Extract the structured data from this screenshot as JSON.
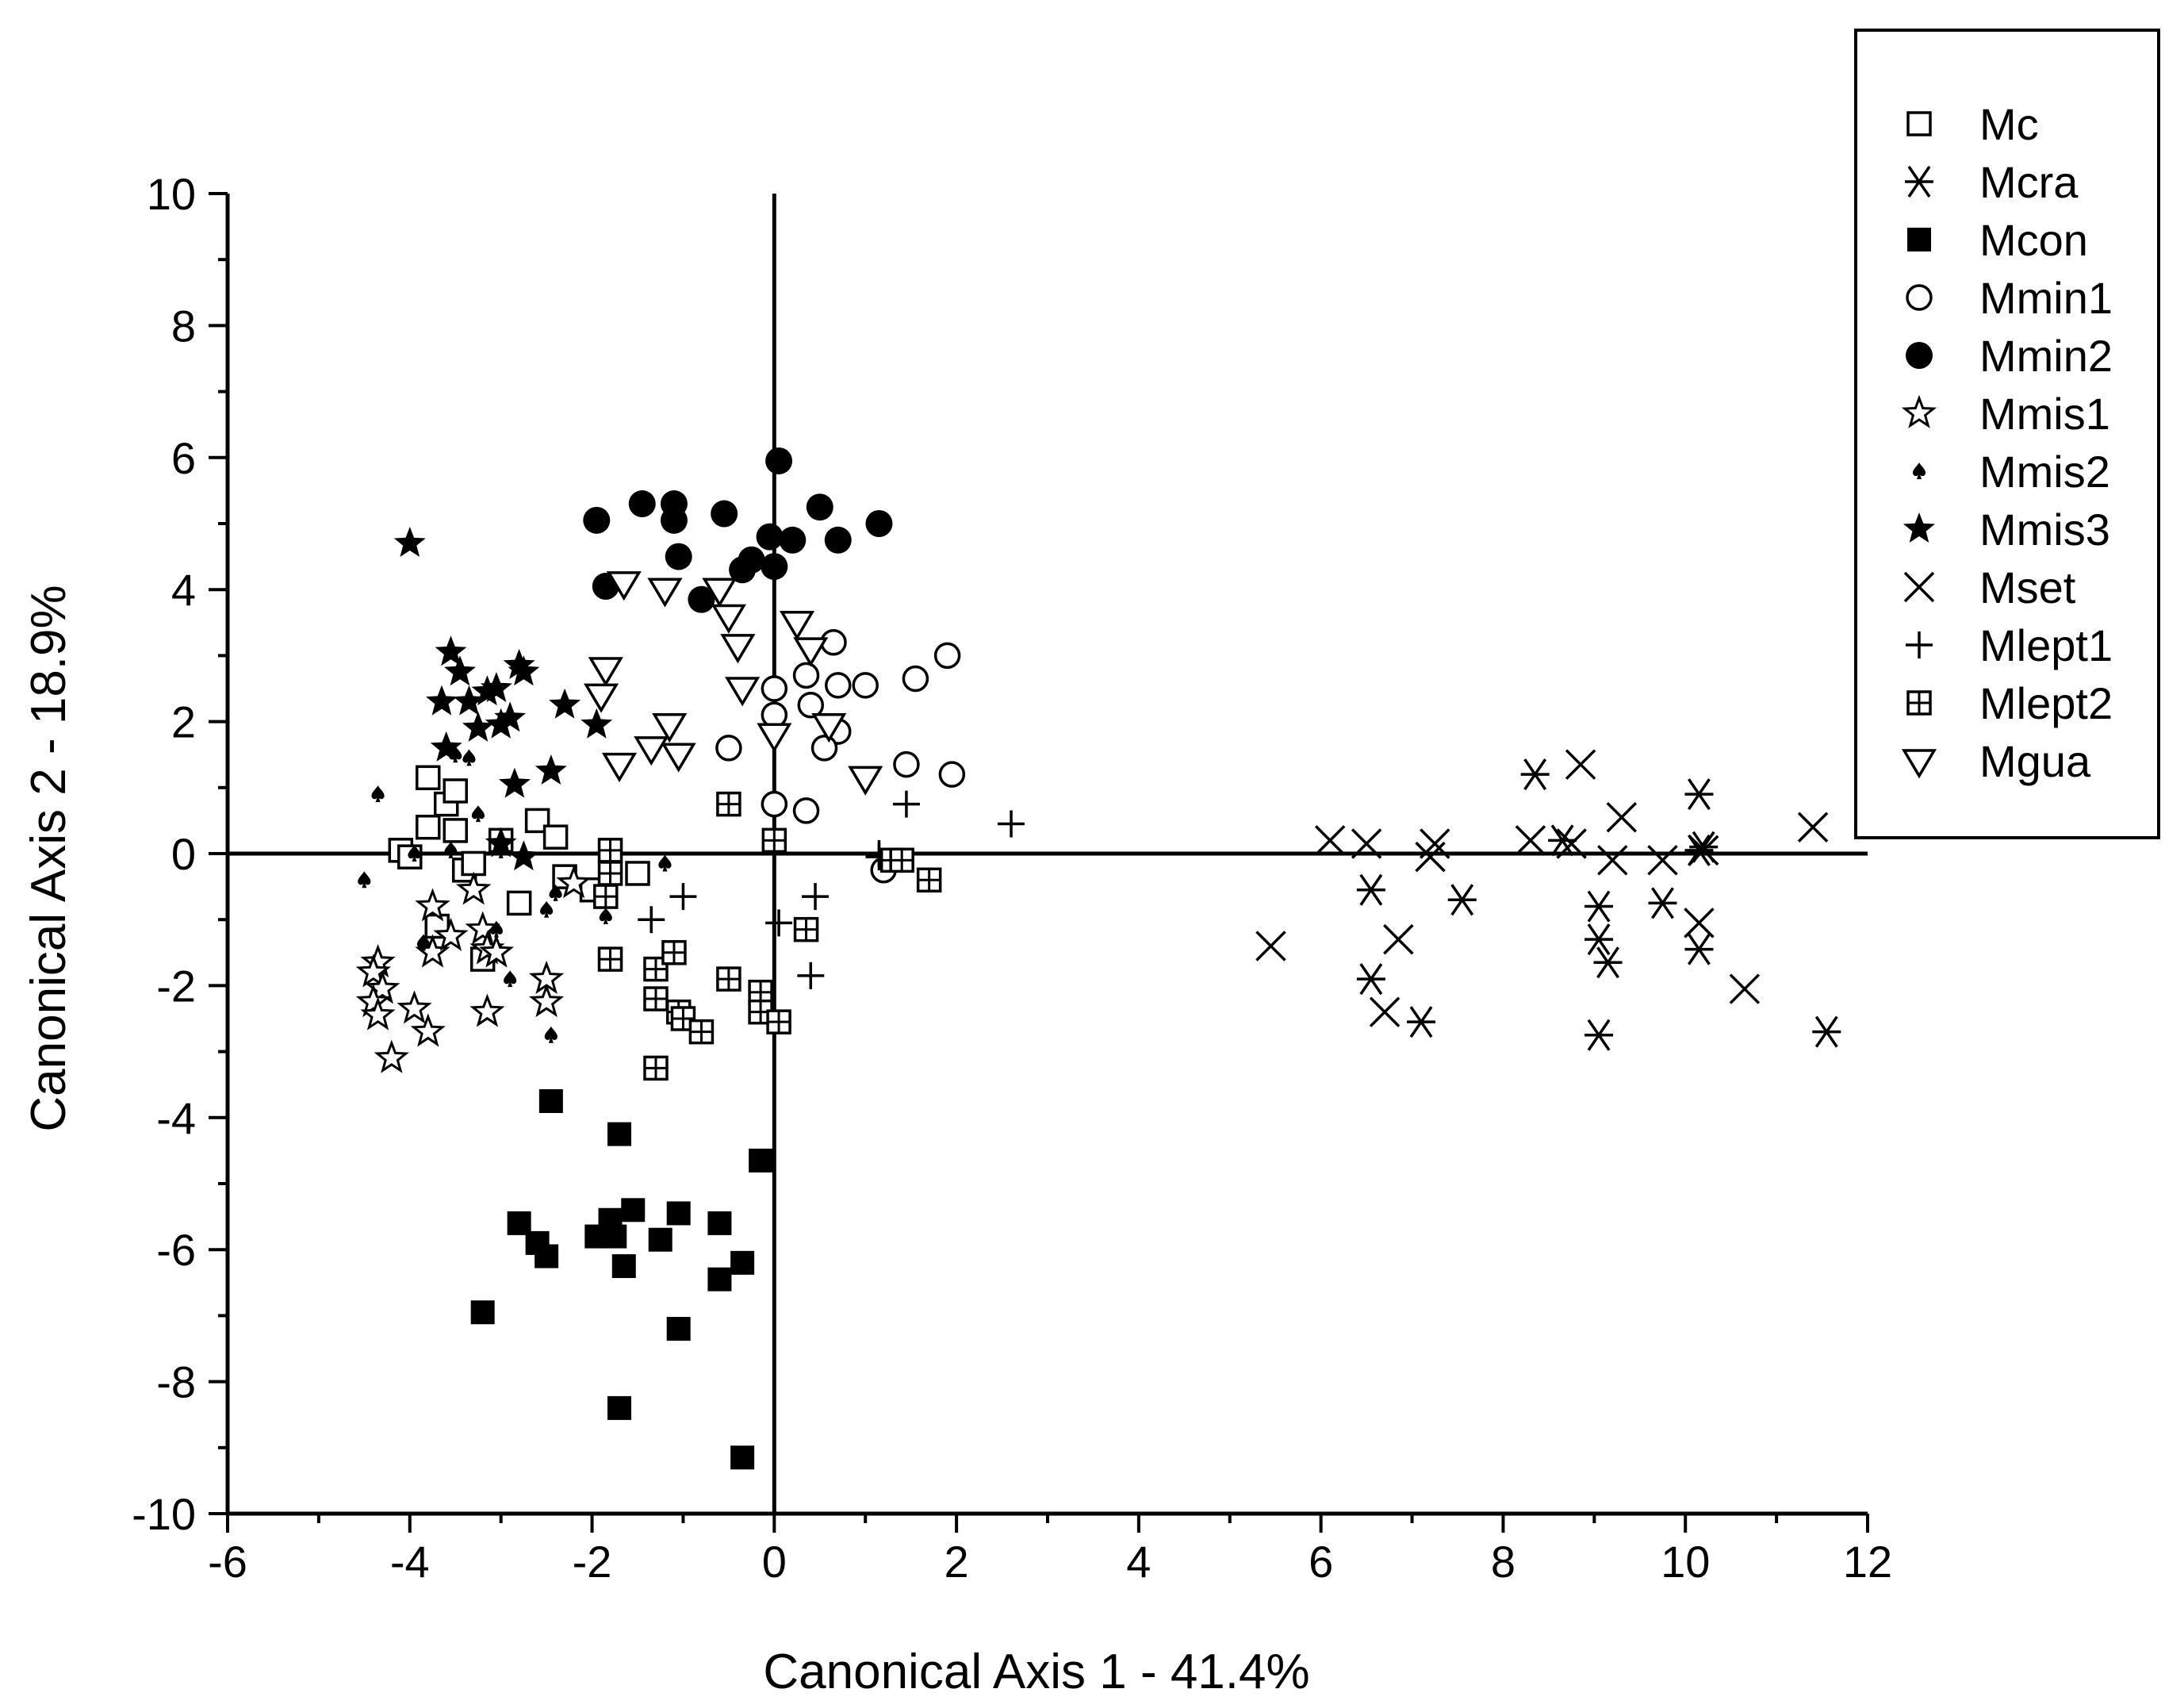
{
  "chart_data": {
    "type": "scatter",
    "title": "",
    "xlabel": "Canonical Axis 1 - 41.4%",
    "ylabel": "Canonical Axis 2 - 18.9%",
    "xlim": [
      -6,
      12
    ],
    "ylim": [
      -10,
      10
    ],
    "x_ticks": [
      -6,
      -4,
      -2,
      0,
      2,
      4,
      6,
      8,
      10,
      12
    ],
    "y_ticks": [
      -10,
      -8,
      -6,
      -4,
      -2,
      0,
      2,
      4,
      6,
      8,
      10
    ],
    "x_tick_labels": [
      "-6",
      "-4",
      "-2",
      "0",
      "2",
      "4",
      "6",
      "8",
      "10",
      "12"
    ],
    "y_tick_labels": [
      "-10",
      "-8",
      "-6",
      "-4",
      "-2",
      "0",
      "2",
      "4",
      "6",
      "8",
      "10"
    ],
    "zero_lines": true,
    "grid": false,
    "legend_position": "top-right, outside plot",
    "series": [
      {
        "name": "Mc",
        "marker": "open-square",
        "points": [
          [
            -4.1,
            0.05
          ],
          [
            -4.0,
            -0.05
          ],
          [
            -3.8,
            0.4
          ],
          [
            -3.8,
            1.15
          ],
          [
            -3.7,
            -1.1
          ],
          [
            -3.6,
            0.75
          ],
          [
            -3.5,
            0.95
          ],
          [
            -3.5,
            0.35
          ],
          [
            -3.4,
            -0.25
          ],
          [
            -3.3,
            -0.15
          ],
          [
            -3.2,
            -1.6
          ],
          [
            -3.0,
            0.2
          ],
          [
            -2.8,
            -0.75
          ],
          [
            -2.6,
            0.5
          ],
          [
            -2.4,
            0.25
          ],
          [
            -2.3,
            -0.35
          ],
          [
            -2.0,
            -0.55
          ],
          [
            -1.5,
            -0.3
          ]
        ]
      },
      {
        "name": "Mcra",
        "marker": "asterisk",
        "points": [
          [
            6.55,
            -0.55
          ],
          [
            6.55,
            -1.9
          ],
          [
            7.1,
            -2.55
          ],
          [
            7.55,
            -0.7
          ],
          [
            8.35,
            1.2
          ],
          [
            8.65,
            0.2
          ],
          [
            9.05,
            -0.8
          ],
          [
            9.05,
            -1.3
          ],
          [
            9.05,
            -2.75
          ],
          [
            9.15,
            -1.65
          ],
          [
            9.75,
            -0.75
          ],
          [
            10.15,
            0.9
          ],
          [
            10.15,
            -1.45
          ],
          [
            10.15,
            0.05
          ],
          [
            10.2,
            0.1
          ],
          [
            11.55,
            -2.7
          ]
        ]
      },
      {
        "name": "Mcon",
        "marker": "filled-square",
        "points": [
          [
            -2.45,
            -3.75
          ],
          [
            -3.2,
            -6.95
          ],
          [
            -2.8,
            -5.6
          ],
          [
            -2.6,
            -5.9
          ],
          [
            -2.5,
            -6.1
          ],
          [
            -1.95,
            -5.8
          ],
          [
            -1.8,
            -5.55
          ],
          [
            -1.75,
            -5.8
          ],
          [
            -1.65,
            -6.25
          ],
          [
            -1.55,
            -5.4
          ],
          [
            -1.7,
            -4.25
          ],
          [
            -1.25,
            -5.85
          ],
          [
            -1.05,
            -5.45
          ],
          [
            -1.05,
            -7.2
          ],
          [
            -1.7,
            -8.4
          ],
          [
            -0.6,
            -5.6
          ],
          [
            -0.6,
            -6.45
          ],
          [
            -0.35,
            -6.2
          ],
          [
            -0.15,
            -4.65
          ],
          [
            -0.35,
            -9.15
          ]
        ]
      },
      {
        "name": "Mmin1",
        "marker": "open-circle",
        "points": [
          [
            0.65,
            3.2
          ],
          [
            1.9,
            3.0
          ],
          [
            1.55,
            2.65
          ],
          [
            0.35,
            2.7
          ],
          [
            0.7,
            2.55
          ],
          [
            1.0,
            2.55
          ],
          [
            0.0,
            2.5
          ],
          [
            0.0,
            2.1
          ],
          [
            0.4,
            2.25
          ],
          [
            0.7,
            1.85
          ],
          [
            -0.5,
            1.6
          ],
          [
            0.55,
            1.6
          ],
          [
            1.45,
            1.35
          ],
          [
            1.95,
            1.2
          ],
          [
            0.0,
            0.75
          ],
          [
            0.35,
            0.65
          ],
          [
            1.2,
            -0.25
          ]
        ]
      },
      {
        "name": "Mmin2",
        "marker": "filled-circle",
        "points": [
          [
            0.05,
            5.95
          ],
          [
            -1.45,
            5.3
          ],
          [
            -1.1,
            5.3
          ],
          [
            -1.1,
            5.05
          ],
          [
            -0.55,
            5.15
          ],
          [
            0.5,
            5.25
          ],
          [
            -1.95,
            5.05
          ],
          [
            1.15,
            5.0
          ],
          [
            0.2,
            4.75
          ],
          [
            0.7,
            4.75
          ],
          [
            -0.05,
            4.8
          ],
          [
            -1.05,
            4.5
          ],
          [
            -0.25,
            4.45
          ],
          [
            -0.35,
            4.3
          ],
          [
            0.0,
            4.35
          ],
          [
            -1.85,
            4.05
          ],
          [
            -0.8,
            3.85
          ]
        ]
      },
      {
        "name": "Mmis1",
        "marker": "open-star",
        "points": [
          [
            -4.35,
            -1.65
          ],
          [
            -4.4,
            -1.8
          ],
          [
            -4.3,
            -2.05
          ],
          [
            -4.4,
            -2.25
          ],
          [
            -4.35,
            -2.45
          ],
          [
            -4.2,
            -3.1
          ],
          [
            -3.95,
            -2.35
          ],
          [
            -3.8,
            -2.7
          ],
          [
            -3.75,
            -1.5
          ],
          [
            -3.75,
            -0.8
          ],
          [
            -3.55,
            -1.25
          ],
          [
            -3.3,
            -0.55
          ],
          [
            -3.2,
            -1.15
          ],
          [
            -3.15,
            -1.45
          ],
          [
            -3.05,
            -1.5
          ],
          [
            -3.15,
            -2.4
          ],
          [
            -2.5,
            -1.9
          ],
          [
            -2.5,
            -2.25
          ],
          [
            -2.2,
            -0.45
          ]
        ]
      },
      {
        "name": "Mmis2",
        "marker": "spade",
        "points": [
          [
            -4.35,
            0.9
          ],
          [
            -4.5,
            -0.4
          ],
          [
            -3.95,
            0.0
          ],
          [
            -3.85,
            -1.35
          ],
          [
            -3.55,
            0.05
          ],
          [
            -3.5,
            1.5
          ],
          [
            -3.35,
            1.45
          ],
          [
            -3.25,
            0.6
          ],
          [
            -3.05,
            -1.15
          ],
          [
            -3.0,
            0.05
          ],
          [
            -2.9,
            -1.9
          ],
          [
            -2.5,
            -0.85
          ],
          [
            -2.45,
            -2.75
          ],
          [
            -2.4,
            -0.6
          ],
          [
            -1.85,
            -0.95
          ],
          [
            -1.2,
            -0.15
          ]
        ]
      },
      {
        "name": "Mmis3",
        "marker": "filled-star",
        "points": [
          [
            -4.0,
            4.7
          ],
          [
            -3.55,
            3.05
          ],
          [
            -3.45,
            2.75
          ],
          [
            -3.65,
            2.3
          ],
          [
            -3.35,
            2.3
          ],
          [
            -3.15,
            2.45
          ],
          [
            -3.05,
            2.5
          ],
          [
            -2.8,
            2.85
          ],
          [
            -2.75,
            2.75
          ],
          [
            -2.9,
            2.05
          ],
          [
            -3.0,
            1.95
          ],
          [
            -3.25,
            1.9
          ],
          [
            -3.6,
            1.6
          ],
          [
            -2.3,
            2.25
          ],
          [
            -1.95,
            1.95
          ],
          [
            -2.45,
            1.25
          ],
          [
            -2.85,
            1.05
          ],
          [
            -2.75,
            -0.05
          ],
          [
            -3.0,
            0.15
          ]
        ]
      },
      {
        "name": "Mset",
        "marker": "x-cross",
        "points": [
          [
            5.45,
            -1.4
          ],
          [
            6.1,
            0.2
          ],
          [
            6.5,
            0.15
          ],
          [
            6.7,
            -2.4
          ],
          [
            6.85,
            -1.3
          ],
          [
            7.2,
            -0.05
          ],
          [
            7.25,
            0.15
          ],
          [
            8.3,
            0.2
          ],
          [
            8.75,
            0.15
          ],
          [
            8.85,
            1.35
          ],
          [
            9.2,
            -0.1
          ],
          [
            9.3,
            0.55
          ],
          [
            9.75,
            -0.1
          ],
          [
            10.15,
            -1.05
          ],
          [
            10.2,
            0.05
          ],
          [
            10.65,
            -2.05
          ],
          [
            11.4,
            0.4
          ]
        ]
      },
      {
        "name": "Mlept1",
        "marker": "plus",
        "points": [
          [
            2.6,
            0.45
          ],
          [
            1.45,
            0.75
          ],
          [
            1.15,
            0.0
          ],
          [
            1.15,
            -0.05
          ],
          [
            0.45,
            -0.65
          ],
          [
            0.05,
            -1.05
          ],
          [
            0.4,
            -1.85
          ],
          [
            -1.0,
            -0.65
          ],
          [
            -1.35,
            -1.0
          ]
        ]
      },
      {
        "name": "Mlept2",
        "marker": "crossed-square",
        "points": [
          [
            -0.5,
            0.75
          ],
          [
            0.0,
            0.2
          ],
          [
            -1.8,
            0.05
          ],
          [
            -1.8,
            -0.3
          ],
          [
            -1.85,
            -0.65
          ],
          [
            -1.8,
            -1.6
          ],
          [
            -1.3,
            -1.75
          ],
          [
            -1.1,
            -1.5
          ],
          [
            -1.3,
            -2.2
          ],
          [
            -1.05,
            -2.4
          ],
          [
            -1.0,
            -2.5
          ],
          [
            -0.8,
            -2.7
          ],
          [
            -0.5,
            -1.9
          ],
          [
            -0.15,
            -2.1
          ],
          [
            -0.15,
            -2.4
          ],
          [
            0.05,
            -2.55
          ],
          [
            -1.3,
            -3.25
          ],
          [
            0.35,
            -1.15
          ],
          [
            1.3,
            -0.1
          ],
          [
            1.4,
            -0.1
          ],
          [
            1.7,
            -0.4
          ]
        ]
      },
      {
        "name": "Mgua",
        "marker": "open-triangle-down",
        "points": [
          [
            -1.65,
            4.1
          ],
          [
            -1.2,
            4.0
          ],
          [
            -0.6,
            4.0
          ],
          [
            -0.5,
            3.6
          ],
          [
            -0.4,
            3.15
          ],
          [
            -0.35,
            2.5
          ],
          [
            0.25,
            3.5
          ],
          [
            0.4,
            3.1
          ],
          [
            0.6,
            1.95
          ],
          [
            -1.85,
            2.8
          ],
          [
            -1.9,
            2.4
          ],
          [
            -1.15,
            1.95
          ],
          [
            -1.35,
            1.6
          ],
          [
            -1.05,
            1.5
          ],
          [
            -1.7,
            1.35
          ],
          [
            0.0,
            1.8
          ],
          [
            1.0,
            1.15
          ]
        ]
      }
    ]
  },
  "legend": [
    {
      "label": "Mc",
      "marker": "open-square"
    },
    {
      "label": "Mcra",
      "marker": "asterisk"
    },
    {
      "label": "Mcon",
      "marker": "filled-square"
    },
    {
      "label": "Mmin1",
      "marker": "open-circle"
    },
    {
      "label": "Mmin2",
      "marker": "filled-circle"
    },
    {
      "label": "Mmis1",
      "marker": "open-star"
    },
    {
      "label": "Mmis2",
      "marker": "spade"
    },
    {
      "label": "Mmis3",
      "marker": "filled-star"
    },
    {
      "label": "Mset",
      "marker": "x-cross"
    },
    {
      "label": "Mlept1",
      "marker": "plus"
    },
    {
      "label": "Mlept2",
      "marker": "crossed-square"
    },
    {
      "label": "Mgua",
      "marker": "open-triangle-down"
    }
  ]
}
